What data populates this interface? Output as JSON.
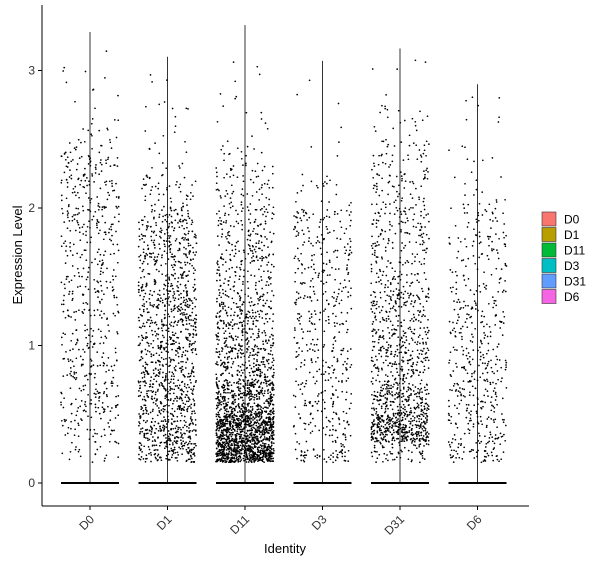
{
  "chart_data": {
    "type": "scatter",
    "subtype": "violin-jitter",
    "xlabel": "Identity",
    "ylabel": "Expression Level",
    "categories": [
      "D0",
      "D1",
      "D11",
      "D3",
      "D31",
      "D6"
    ],
    "ylim": [
      -0.19,
      3.45
    ],
    "yticks": [
      0,
      1,
      2,
      3
    ],
    "grid": false,
    "legend": {
      "position": "right",
      "entries": [
        {
          "label": "D0",
          "color": "#F8766D"
        },
        {
          "label": "D1",
          "color": "#B79F00"
        },
        {
          "label": "D11",
          "color": "#00BA38"
        },
        {
          "label": "D3",
          "color": "#00BFC4"
        },
        {
          "label": "D31",
          "color": "#619CFF"
        },
        {
          "label": "D6",
          "color": "#F564E3"
        }
      ]
    },
    "point_color": "#000000",
    "series": [
      {
        "category": "D0",
        "max": 3.28,
        "n_points": 620,
        "density": [
          [
            0.25,
            0.02
          ],
          [
            0.5,
            0.09
          ],
          [
            0.75,
            0.11
          ],
          [
            1.0,
            0.1
          ],
          [
            1.25,
            0.09
          ],
          [
            1.5,
            0.1
          ],
          [
            1.75,
            0.09
          ],
          [
            2.0,
            0.1
          ],
          [
            2.25,
            0.13
          ],
          [
            2.5,
            0.09
          ],
          [
            2.75,
            0.02
          ],
          [
            3.0,
            0.01
          ],
          [
            3.25,
            0.002
          ]
        ]
      },
      {
        "category": "D1",
        "max": 3.1,
        "n_points": 1350,
        "density": [
          [
            0.25,
            0.07
          ],
          [
            0.5,
            0.15
          ],
          [
            0.75,
            0.15
          ],
          [
            1.0,
            0.14
          ],
          [
            1.25,
            0.13
          ],
          [
            1.5,
            0.12
          ],
          [
            1.75,
            0.1
          ],
          [
            2.0,
            0.09
          ],
          [
            2.25,
            0.04
          ],
          [
            2.5,
            0.01
          ],
          [
            2.75,
            0.007
          ],
          [
            3.0,
            0.005
          ]
        ]
      },
      {
        "category": "D11",
        "max": 3.33,
        "n_points": 2350,
        "density": [
          [
            0.25,
            0.18
          ],
          [
            0.5,
            0.32
          ],
          [
            0.75,
            0.17
          ],
          [
            1.0,
            0.09
          ],
          [
            1.25,
            0.07
          ],
          [
            1.5,
            0.05
          ],
          [
            1.75,
            0.04
          ],
          [
            2.0,
            0.04
          ],
          [
            2.25,
            0.025
          ],
          [
            2.5,
            0.01
          ],
          [
            2.75,
            0.005
          ],
          [
            3.0,
            0.003
          ],
          [
            3.25,
            0.002
          ]
        ]
      },
      {
        "category": "D3",
        "max": 3.07,
        "n_points": 520,
        "density": [
          [
            0.25,
            0.08
          ],
          [
            0.5,
            0.13
          ],
          [
            0.75,
            0.12
          ],
          [
            1.0,
            0.12
          ],
          [
            1.25,
            0.11
          ],
          [
            1.5,
            0.11
          ],
          [
            1.75,
            0.12
          ],
          [
            2.0,
            0.1
          ],
          [
            2.25,
            0.03
          ],
          [
            2.5,
            0.01
          ],
          [
            2.75,
            0.008
          ],
          [
            3.0,
            0.005
          ]
        ]
      },
      {
        "category": "D31",
        "max": 3.16,
        "n_points": 1300,
        "density": [
          [
            0.3,
            0.05
          ],
          [
            0.5,
            0.24
          ],
          [
            0.75,
            0.17
          ],
          [
            1.0,
            0.12
          ],
          [
            1.25,
            0.1
          ],
          [
            1.5,
            0.08
          ],
          [
            1.75,
            0.06
          ],
          [
            2.0,
            0.06
          ],
          [
            2.25,
            0.05
          ],
          [
            2.5,
            0.04
          ],
          [
            2.75,
            0.02
          ],
          [
            3.0,
            0.005
          ],
          [
            3.15,
            0.002
          ]
        ]
      },
      {
        "category": "D6",
        "max": 2.9,
        "n_points": 520,
        "density": [
          [
            0.25,
            0.09
          ],
          [
            0.5,
            0.17
          ],
          [
            0.75,
            0.15
          ],
          [
            1.0,
            0.13
          ],
          [
            1.25,
            0.12
          ],
          [
            1.5,
            0.1
          ],
          [
            1.75,
            0.08
          ],
          [
            2.0,
            0.07
          ],
          [
            2.25,
            0.03
          ],
          [
            2.5,
            0.02
          ],
          [
            2.75,
            0.01
          ],
          [
            2.9,
            0.005
          ]
        ]
      }
    ]
  }
}
